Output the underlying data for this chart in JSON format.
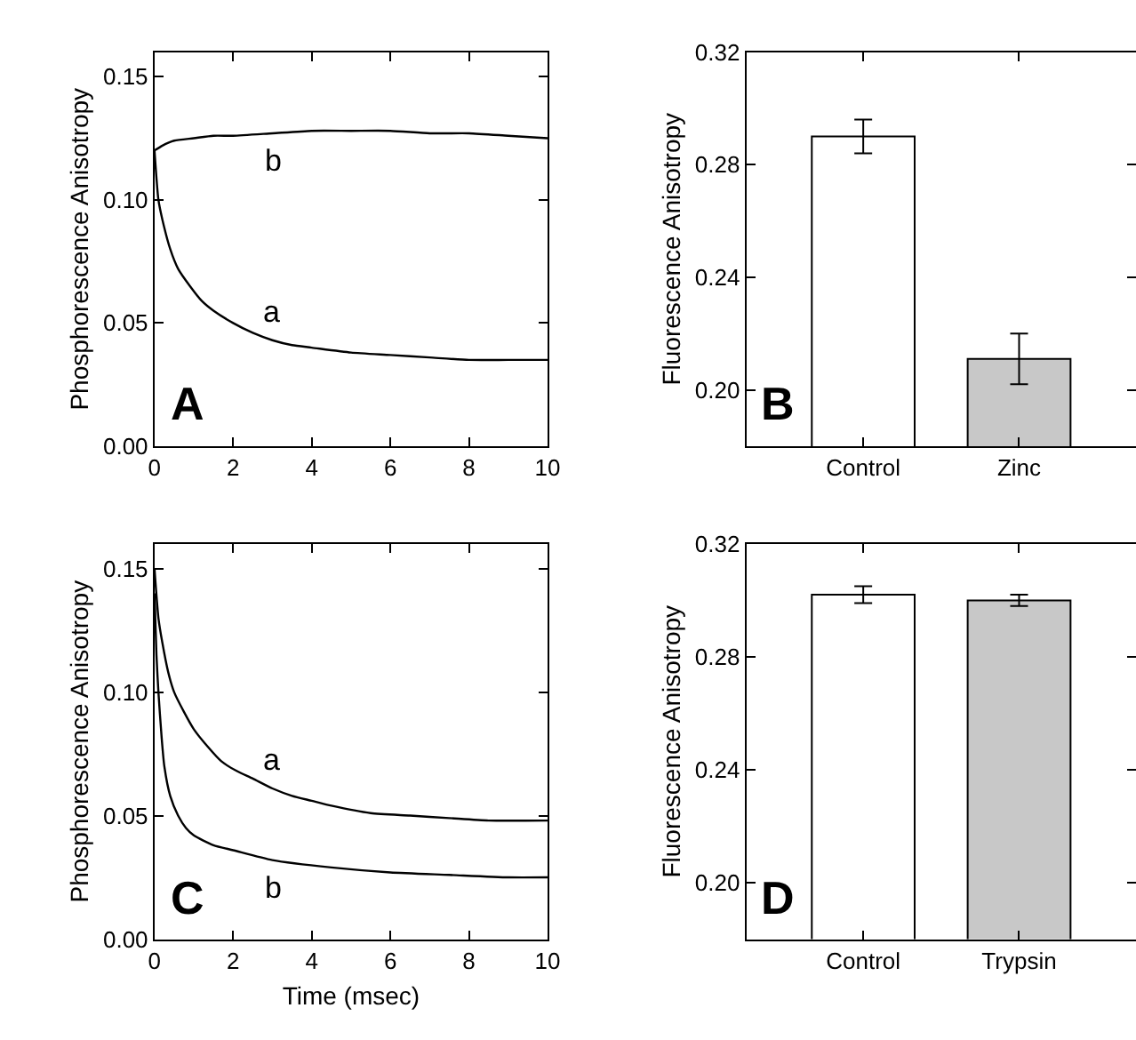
{
  "chart_data": [
    {
      "type": "line",
      "ylabel": "Phosphorescence Anisotropy",
      "xlim": [
        0,
        10
      ],
      "xticks": [
        0,
        2,
        4,
        6,
        8,
        10
      ],
      "ylim": [
        0,
        0.16
      ],
      "yticks": [
        {
          "value": 0,
          "label": "0.00"
        },
        {
          "value": 0.05,
          "label": "0.05"
        },
        {
          "value": 0.1,
          "label": "0.10"
        },
        {
          "value": 0.15,
          "label": "0.15"
        }
      ],
      "legend": false,
      "marker": "none",
      "line_style": "solid",
      "series": [
        {
          "name": "a",
          "color": "#000000",
          "x": [
            0,
            0.1,
            0.2,
            0.4,
            0.6,
            0.9,
            1.2,
            1.5,
            2,
            2.5,
            3,
            3.5,
            4,
            5,
            6,
            7,
            8,
            9,
            10
          ],
          "values": [
            0.12,
            0.1,
            0.092,
            0.08,
            0.072,
            0.065,
            0.059,
            0.055,
            0.05,
            0.046,
            0.043,
            0.041,
            0.04,
            0.038,
            0.037,
            0.036,
            0.035,
            0.035,
            0.035
          ]
        },
        {
          "name": "b",
          "color": "#000000",
          "x": [
            0,
            0.2,
            0.5,
            1,
            1.5,
            2,
            3,
            4,
            5,
            6,
            7,
            8,
            9,
            10
          ],
          "values": [
            0.12,
            0.122,
            0.124,
            0.125,
            0.126,
            0.126,
            0.127,
            0.128,
            0.128,
            0.128,
            0.127,
            0.127,
            0.126,
            0.125
          ]
        }
      ],
      "annotations": [
        "A"
      ]
    },
    {
      "type": "bar",
      "ylabel": "Fluorescence Anisotropy",
      "categories": [
        "Control",
        "Zinc"
      ],
      "values": [
        0.29,
        0.211
      ],
      "errors": [
        0.006,
        0.009
      ],
      "colors": [
        "#ffffff",
        "#c8c8c8"
      ],
      "ylim": [
        0.18,
        0.32
      ],
      "yticks": [
        {
          "value": 0.2,
          "label": "0.20"
        },
        0.24,
        0.28,
        0.32
      ],
      "legend": false,
      "annotations": [
        "B"
      ]
    },
    {
      "type": "line",
      "ylabel": "Phosphorescence Anisotropy",
      "xlabel": "Time (msec)",
      "xlim": [
        0,
        10
      ],
      "xticks": [
        0,
        2,
        4,
        6,
        8,
        10
      ],
      "ylim": [
        0,
        0.16
      ],
      "yticks": [
        {
          "value": 0,
          "label": "0.00"
        },
        {
          "value": 0.05,
          "label": "0.05"
        },
        {
          "value": 0.1,
          "label": "0.10"
        },
        {
          "value": 0.15,
          "label": "0.15"
        }
      ],
      "legend": false,
      "marker": "none",
      "line_style": "solid",
      "series": [
        {
          "name": "a",
          "color": "#000000",
          "x": [
            0,
            0.1,
            0.2,
            0.35,
            0.5,
            0.75,
            1,
            1.35,
            1.7,
            2.1,
            2.5,
            3,
            3.5,
            4,
            4.5,
            5.5,
            6.5,
            7.5,
            8.5,
            10
          ],
          "values": [
            0.15,
            0.13,
            0.12,
            0.108,
            0.1,
            0.092,
            0.085,
            0.078,
            0.072,
            0.068,
            0.065,
            0.061,
            0.058,
            0.056,
            0.054,
            0.051,
            0.05,
            0.049,
            0.048,
            0.048
          ]
        },
        {
          "name": "b",
          "color": "#000000",
          "x": [
            0,
            0.05,
            0.1,
            0.18,
            0.25,
            0.4,
            0.6,
            0.8,
            1,
            1.5,
            2,
            3,
            4.5,
            6,
            7.5,
            9,
            10
          ],
          "values": [
            0.14,
            0.115,
            0.1,
            0.082,
            0.07,
            0.058,
            0.05,
            0.045,
            0.042,
            0.038,
            0.036,
            0.032,
            0.029,
            0.027,
            0.026,
            0.025,
            0.025
          ]
        }
      ],
      "annotations": [
        "C"
      ]
    },
    {
      "type": "bar",
      "ylabel": "Fluorescence Anisotropy",
      "categories": [
        "Control",
        "Trypsin"
      ],
      "values": [
        0.302,
        0.3
      ],
      "errors": [
        0.003,
        0.002
      ],
      "colors": [
        "#ffffff",
        "#c8c8c8"
      ],
      "ylim": [
        0.18,
        0.32
      ],
      "yticks": [
        {
          "value": 0.2,
          "label": "0.20"
        },
        0.24,
        0.28,
        0.32
      ],
      "legend": false,
      "annotations": [
        "D"
      ]
    }
  ]
}
